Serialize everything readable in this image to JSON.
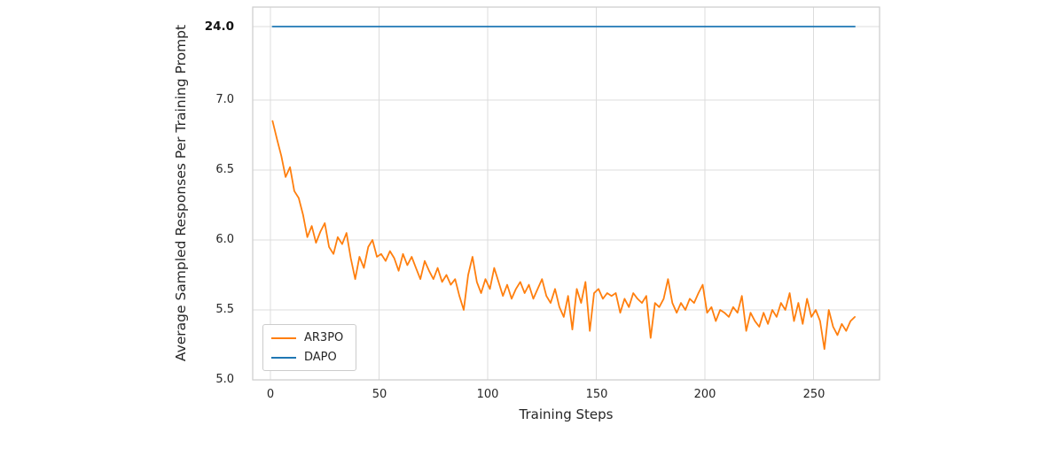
{
  "page": {
    "background": "#ffffff"
  },
  "chart_data": {
    "type": "line",
    "title": "",
    "xlabel": "Training Steps",
    "ylabel": "Average Sampled Responses Per Training Prompt",
    "grid": true,
    "legend_position": "lower left",
    "broken_axis": true,
    "upper_value": 24.0,
    "ylim_lower_segment": [
      5.0,
      7.0
    ],
    "xlim": [
      -8,
      281
    ],
    "x_ticks": [
      "0",
      "50",
      "100",
      "150",
      "200",
      "250"
    ],
    "x_tick_values": [
      0,
      50,
      100,
      150,
      200,
      250
    ],
    "y_ticks": [
      "24.0",
      "7.0",
      "6.5",
      "6.0",
      "5.5",
      "5.0"
    ],
    "y_tick_values": [
      24.0,
      7.0,
      6.5,
      6.0,
      5.5,
      5.0
    ],
    "series": [
      {
        "name": "AR3PO",
        "color": "#ff7f0e",
        "x": [
          1,
          3,
          5,
          7,
          9,
          11,
          13,
          15,
          17,
          19,
          21,
          23,
          25,
          27,
          29,
          31,
          33,
          35,
          37,
          39,
          41,
          43,
          45,
          47,
          49,
          51,
          53,
          55,
          57,
          59,
          61,
          63,
          65,
          67,
          69,
          71,
          73,
          75,
          77,
          79,
          81,
          83,
          85,
          87,
          89,
          91,
          93,
          95,
          97,
          99,
          101,
          103,
          105,
          107,
          109,
          111,
          113,
          115,
          117,
          119,
          121,
          123,
          125,
          127,
          129,
          131,
          133,
          135,
          137,
          139,
          141,
          143,
          145,
          147,
          149,
          151,
          153,
          155,
          157,
          159,
          161,
          163,
          165,
          167,
          169,
          171,
          173,
          175,
          177,
          179,
          181,
          183,
          185,
          187,
          189,
          191,
          193,
          195,
          197,
          199,
          201,
          203,
          205,
          207,
          209,
          211,
          213,
          215,
          217,
          219,
          221,
          223,
          225,
          227,
          229,
          231,
          233,
          235,
          237,
          239,
          241,
          243,
          245,
          247,
          249,
          251,
          253,
          255,
          257,
          259,
          261,
          263,
          265,
          267,
          269
        ],
        "y": [
          6.85,
          6.72,
          6.6,
          6.45,
          6.52,
          6.35,
          6.3,
          6.18,
          6.02,
          6.1,
          5.98,
          6.06,
          6.12,
          5.95,
          5.9,
          6.02,
          5.97,
          6.05,
          5.87,
          5.72,
          5.88,
          5.8,
          5.95,
          6.0,
          5.88,
          5.9,
          5.85,
          5.92,
          5.87,
          5.78,
          5.9,
          5.82,
          5.88,
          5.8,
          5.72,
          5.85,
          5.78,
          5.72,
          5.8,
          5.7,
          5.75,
          5.68,
          5.72,
          5.6,
          5.5,
          5.75,
          5.88,
          5.7,
          5.62,
          5.72,
          5.65,
          5.8,
          5.7,
          5.6,
          5.68,
          5.58,
          5.65,
          5.7,
          5.62,
          5.68,
          5.58,
          5.65,
          5.72,
          5.6,
          5.55,
          5.65,
          5.52,
          5.45,
          5.6,
          5.36,
          5.65,
          5.55,
          5.7,
          5.35,
          5.62,
          5.65,
          5.58,
          5.62,
          5.6,
          5.62,
          5.48,
          5.58,
          5.52,
          5.62,
          5.58,
          5.55,
          5.6,
          5.3,
          5.55,
          5.52,
          5.58,
          5.72,
          5.55,
          5.48,
          5.55,
          5.5,
          5.58,
          5.55,
          5.62,
          5.68,
          5.48,
          5.52,
          5.42,
          5.5,
          5.48,
          5.45,
          5.52,
          5.48,
          5.6,
          5.35,
          5.48,
          5.42,
          5.38,
          5.48,
          5.4,
          5.5,
          5.45,
          5.55,
          5.5,
          5.62,
          5.42,
          5.55,
          5.4,
          5.58,
          5.45,
          5.5,
          5.42,
          5.22,
          5.5,
          5.38,
          5.32,
          5.4,
          5.35,
          5.42,
          5.45
        ]
      },
      {
        "name": "DAPO",
        "color": "#1f77b4",
        "x": [
          1,
          269
        ],
        "y": [
          24.0,
          24.0
        ]
      }
    ]
  }
}
